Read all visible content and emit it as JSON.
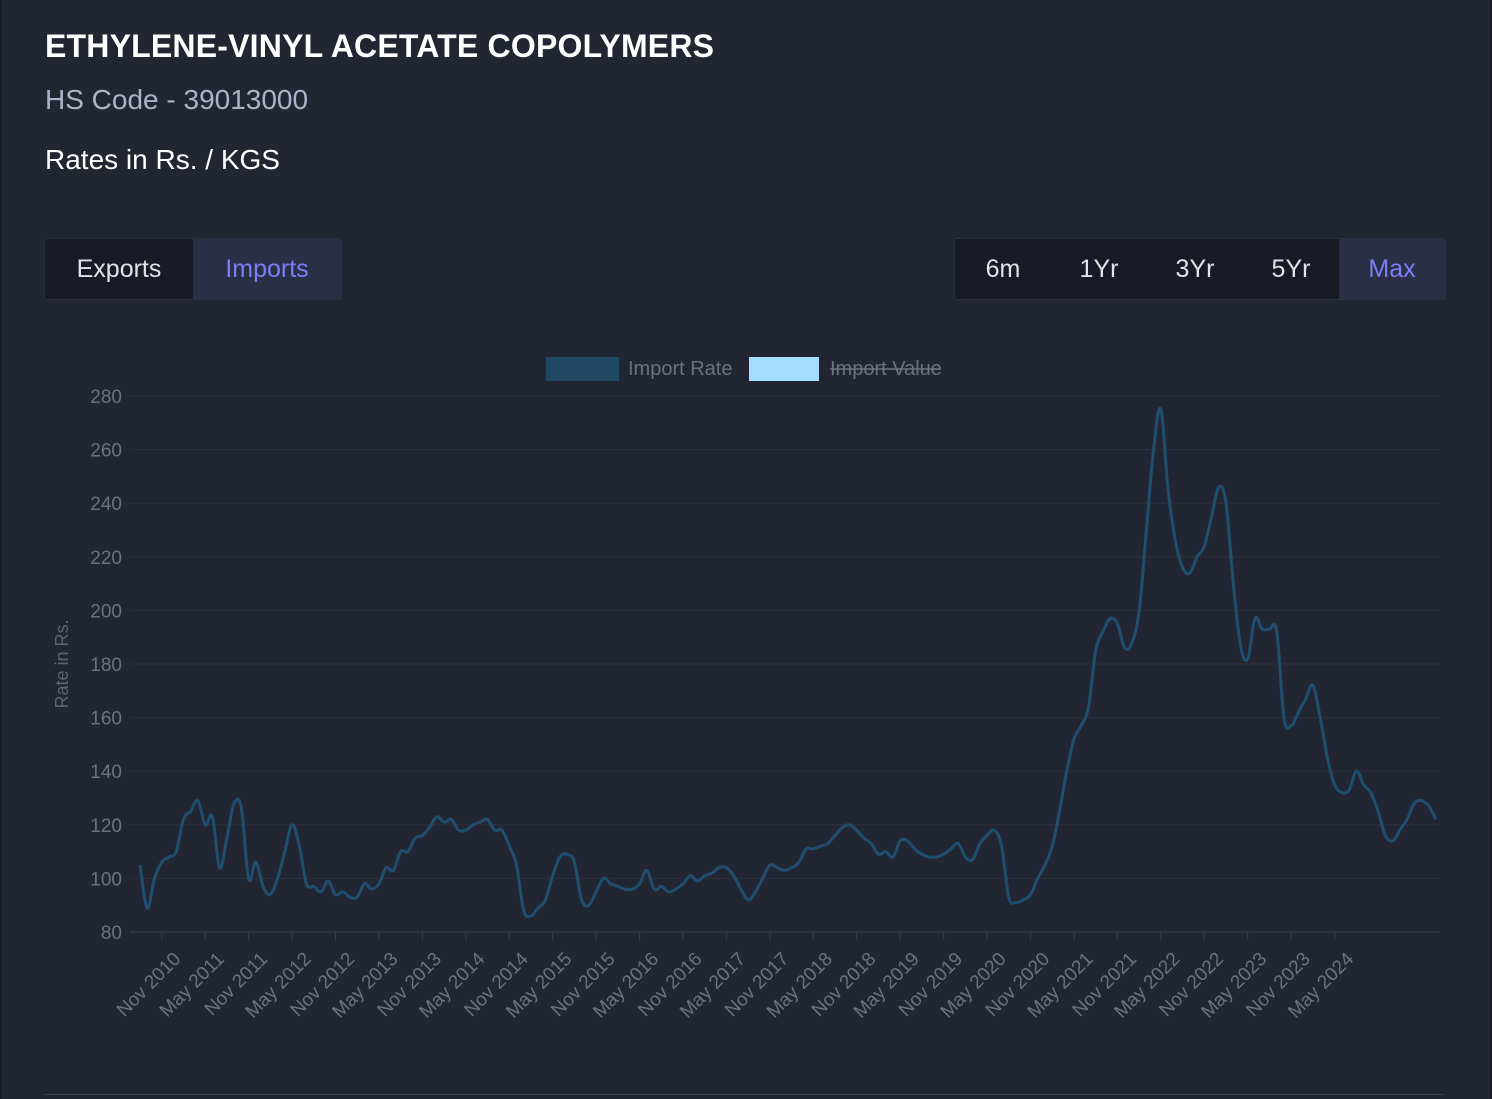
{
  "product": {
    "title": "ETHYLENE-VINYL ACETATE COPOLYMERS",
    "hs_code": "HS Code - 39013000",
    "rates_unit": "Rates in Rs. / KGS"
  },
  "trade_tabs": {
    "items": [
      {
        "label": "Exports",
        "active": false
      },
      {
        "label": "Imports",
        "active": true
      }
    ]
  },
  "range_tabs": {
    "items": [
      {
        "label": "6m",
        "active": false
      },
      {
        "label": "1Yr",
        "active": false
      },
      {
        "label": "3Yr",
        "active": false
      },
      {
        "label": "5Yr",
        "active": false
      },
      {
        "label": "Max",
        "active": true
      }
    ]
  },
  "colors": {
    "line": "#1f4e6e",
    "legend_rate": "#1f4863",
    "legend_value": "#a6dcff",
    "active_tab_text": "#7b7ff7"
  },
  "chart_data": {
    "type": "line",
    "title": "",
    "xlabel": "",
    "ylabel": "Rate in Rs.",
    "ylim": [
      80,
      280
    ],
    "yticks": [
      80,
      100,
      120,
      140,
      160,
      180,
      200,
      220,
      240,
      260,
      280
    ],
    "grid": true,
    "legend": {
      "placement": "top-center",
      "entries": [
        {
          "label": "Import Rate",
          "hidden": false
        },
        {
          "label": "Import Value",
          "hidden": true
        }
      ]
    },
    "x_tick_labels": [
      "Nov 2010",
      "May 2011",
      "Nov 2011",
      "May 2012",
      "Nov 2012",
      "May 2013",
      "Nov 2013",
      "May 2014",
      "Nov 2014",
      "May 2015",
      "Nov 2015",
      "May 2016",
      "Nov 2016",
      "May 2017",
      "Nov 2017",
      "May 2018",
      "Nov 2018",
      "May 2019",
      "Nov 2019",
      "May 2020",
      "Nov 2020",
      "May 2021",
      "Nov 2021",
      "May 2022",
      "Nov 2022",
      "May 2023",
      "Nov 2023",
      "May 2024"
    ],
    "series": [
      {
        "name": "Import Rate",
        "start": "Aug 2010",
        "values": [
          105,
          89,
          100,
          106,
          108,
          110,
          122,
          125,
          129,
          120,
          123,
          104,
          115,
          128,
          126,
          100,
          106,
          97,
          94,
          100,
          110,
          120,
          112,
          98,
          97,
          95,
          99,
          94,
          95,
          93,
          93,
          98,
          96,
          98,
          104,
          103,
          110,
          110,
          115,
          116,
          119,
          123,
          121,
          122,
          118,
          118,
          120,
          121,
          122,
          118,
          118,
          112,
          105,
          88,
          86,
          89,
          92,
          101,
          108,
          109,
          106,
          92,
          90,
          95,
          100,
          98,
          97,
          96,
          96,
          98,
          103,
          96,
          97,
          95,
          96,
          98,
          101,
          99,
          101,
          102,
          104,
          104,
          101,
          96,
          92,
          95,
          100,
          105,
          104,
          103,
          104,
          106,
          111,
          111,
          112,
          113,
          116,
          119,
          120,
          118,
          115,
          113,
          109,
          110,
          108,
          114,
          114,
          111,
          109,
          108,
          108,
          109,
          111,
          113,
          108,
          107,
          113,
          116,
          118,
          112,
          93,
          91,
          92,
          94,
          100,
          105,
          112,
          125,
          140,
          152,
          157,
          164,
          185,
          192,
          197,
          195,
          186,
          188,
          200,
          230,
          260,
          275,
          245,
          226,
          216,
          214,
          220,
          224,
          235,
          246,
          240,
          210,
          187,
          182,
          197,
          193,
          193,
          192,
          160,
          157,
          162,
          167,
          172,
          160,
          145,
          135,
          132,
          133,
          140,
          135,
          132,
          125,
          116,
          114,
          118,
          122,
          128,
          129,
          127,
          122
        ]
      }
    ]
  }
}
